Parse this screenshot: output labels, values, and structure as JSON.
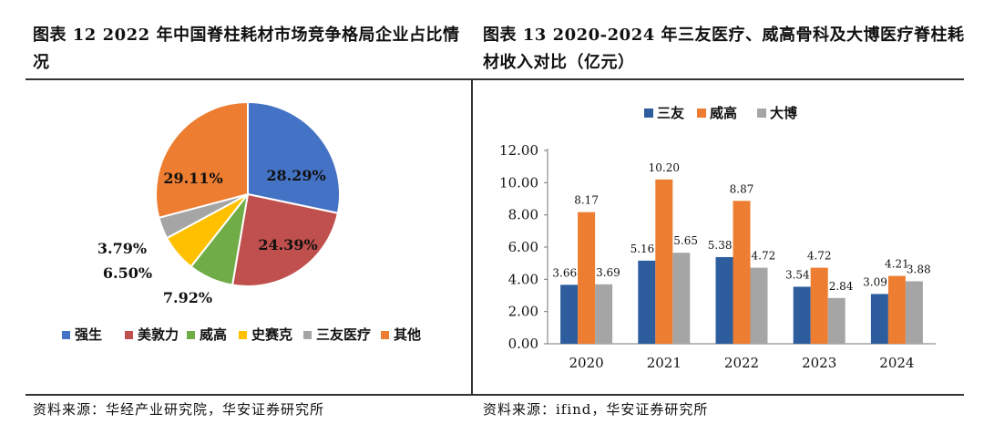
{
  "left_title": "图表 12 2022 年中国脊柱耗材市场竞争格局企业占比情况",
  "right_title": "图表 13 2020-2024 年三友医疗、威高骨科及大博医疗脊柱耗材收入对比（亿元）",
  "left_source": "资料来源：华经产业研究院，华安证券研究所",
  "right_source": "资料来源：ifind，华安证券研究所",
  "chart_data": [
    {
      "type": "pie",
      "title": "",
      "slices": [
        {
          "name": "强生",
          "value": 28.29,
          "label": "28.29%",
          "color": "#4472C4"
        },
        {
          "name": "美敦力",
          "value": 24.39,
          "label": "24.39%",
          "color": "#C0504D"
        },
        {
          "name": "威高",
          "value": 7.92,
          "label": "7.92%",
          "color": "#70AD47"
        },
        {
          "name": "史赛克",
          "value": 6.5,
          "label": "6.50%",
          "color": "#FFC000"
        },
        {
          "name": "三友医疗",
          "value": 3.79,
          "label": "3.79%",
          "color": "#A5A5A5"
        },
        {
          "name": "其他",
          "value": 29.11,
          "label": "29.11%",
          "color": "#ED7D31"
        }
      ],
      "legend_position": "bottom"
    },
    {
      "type": "bar",
      "title": "",
      "categories": [
        "2020",
        "2021",
        "2022",
        "2023",
        "2024"
      ],
      "series": [
        {
          "name": "三友",
          "color": "#2E5D9E",
          "values": [
            3.66,
            5.16,
            5.38,
            3.54,
            3.09
          ],
          "labels": [
            "3.66",
            "5.16",
            "5.38",
            "3.54",
            "3.09"
          ]
        },
        {
          "name": "威高",
          "color": "#ED7D31",
          "values": [
            8.17,
            10.2,
            8.87,
            4.72,
            4.21
          ],
          "labels": [
            "8.17",
            "10.20",
            "8.87",
            "4.72",
            "4.21"
          ]
        },
        {
          "name": "大博",
          "color": "#A5A5A5",
          "values": [
            3.69,
            5.65,
            4.72,
            2.84,
            3.88
          ],
          "labels": [
            "3.69",
            "5.65",
            "4.72",
            "2.84",
            "3.88"
          ]
        }
      ],
      "ylim": [
        0,
        12
      ],
      "yticks": [
        "0.00",
        "2.00",
        "4.00",
        "6.00",
        "8.00",
        "10.00",
        "12.00"
      ],
      "xlabel": "",
      "ylabel": "",
      "grid": false,
      "legend_position": "top"
    }
  ]
}
